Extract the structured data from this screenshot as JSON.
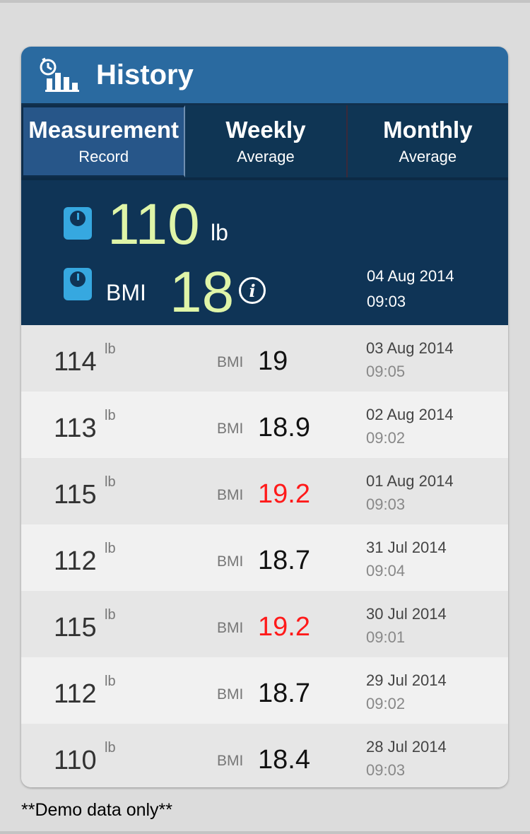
{
  "header": {
    "title": "History",
    "icon": "history-chart-icon"
  },
  "tabs": [
    {
      "line1": "Measurement",
      "line2": "Record",
      "active": true
    },
    {
      "line1": "Weekly",
      "line2": "Average",
      "active": false
    },
    {
      "line1": "Monthly",
      "line2": "Average",
      "active": false
    }
  ],
  "latest": {
    "weight": "110",
    "weight_unit": "lb",
    "bmi_label": "BMI",
    "bmi": "18",
    "date": "04 Aug 2014",
    "time": "09:03",
    "info_icon": "info-icon",
    "scale_icon": "scale-icon"
  },
  "records": [
    {
      "weight": "114",
      "unit": "lb",
      "bmi_label": "BMI",
      "bmi": "19",
      "high": false,
      "date": "03 Aug 2014",
      "time": "09:05"
    },
    {
      "weight": "113",
      "unit": "lb",
      "bmi_label": "BMI",
      "bmi": "18.9",
      "high": false,
      "date": "02 Aug 2014",
      "time": "09:02"
    },
    {
      "weight": "115",
      "unit": "lb",
      "bmi_label": "BMI",
      "bmi": "19.2",
      "high": true,
      "date": "01 Aug 2014",
      "time": "09:03"
    },
    {
      "weight": "112",
      "unit": "lb",
      "bmi_label": "BMI",
      "bmi": "18.7",
      "high": false,
      "date": "31 Jul 2014",
      "time": "09:04"
    },
    {
      "weight": "115",
      "unit": "lb",
      "bmi_label": "BMI",
      "bmi": "19.2",
      "high": true,
      "date": "30 Jul 2014",
      "time": "09:01"
    },
    {
      "weight": "112",
      "unit": "lb",
      "bmi_label": "BMI",
      "bmi": "18.7",
      "high": false,
      "date": "29 Jul 2014",
      "time": "09:02"
    },
    {
      "weight": "110",
      "unit": "lb",
      "bmi_label": "BMI",
      "bmi": "18.4",
      "high": false,
      "date": "28 Jul 2014",
      "time": "09:03"
    }
  ],
  "colors": {
    "highlight_bmi": "#ff1a1a",
    "latest_value": "#dff5a8",
    "header_bg": "#2a6aa0"
  },
  "footer": {
    "note": "**Demo data only**"
  }
}
